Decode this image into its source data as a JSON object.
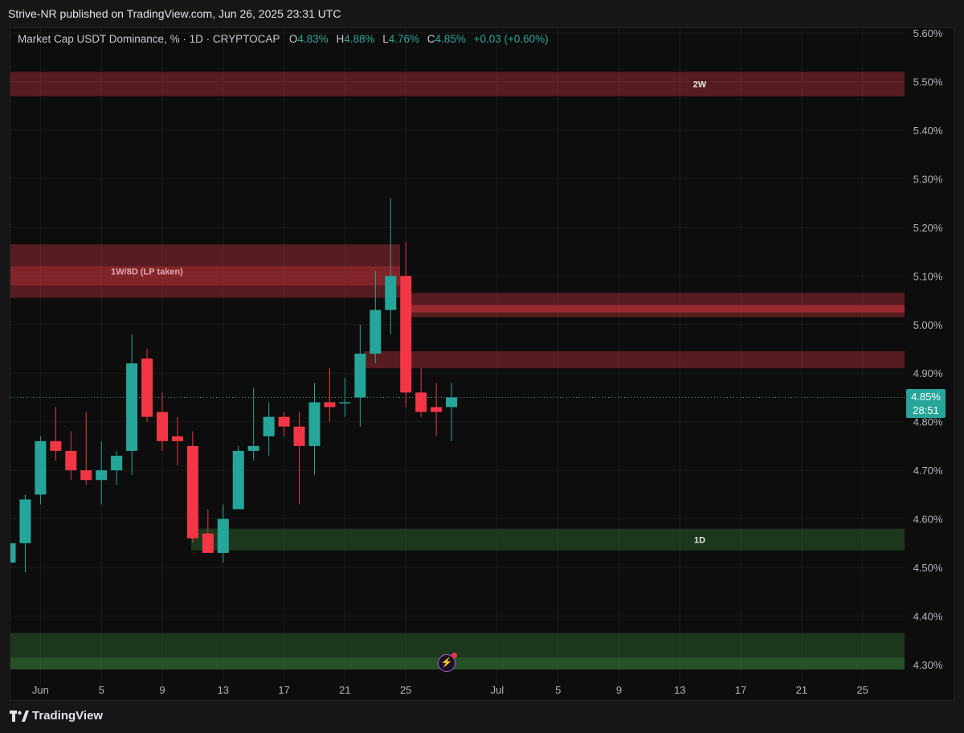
{
  "header": {
    "published": "Strive-NR published on TradingView.com, Jun 26, 2025 23:31 UTC"
  },
  "legend": {
    "symbol": "Market Cap USDT Dominance, % · 1D · CRYPTOCAP",
    "o_label": "O",
    "o_value": "4.83%",
    "h_label": "H",
    "h_value": "4.88%",
    "l_label": "L",
    "l_value": "4.76%",
    "c_label": "C",
    "c_value": "4.85%",
    "change": "+0.03 (+0.60%)"
  },
  "last_price": {
    "price": "4.85%",
    "countdown": "28:51"
  },
  "footer": {
    "brand": "TradingView"
  },
  "colors": {
    "up": "#26a69a",
    "down": "#f23645",
    "background": "#0d0d0d",
    "zone_red": "#d0343f",
    "zone_green": "#2f6b2f"
  },
  "icons": {
    "logo": "tradingview-logo-icon",
    "alert": "lightning-bolt-icon"
  },
  "chart_data": {
    "type": "candlestick",
    "title": "Market Cap USDT Dominance, % · 1D · CRYPTOCAP",
    "y_unit": "%",
    "ylim": [
      4.29,
      5.61
    ],
    "y_ticks": [
      "5.60%",
      "5.50%",
      "5.40%",
      "5.30%",
      "5.20%",
      "5.10%",
      "5.00%",
      "4.90%",
      "4.80%",
      "4.70%",
      "4.60%",
      "4.50%",
      "4.40%",
      "4.30%"
    ],
    "x_ticks": [
      "Jun",
      "5",
      "9",
      "13",
      "17",
      "21",
      "25",
      "Jul",
      "5",
      "9",
      "13",
      "17",
      "21",
      "25"
    ],
    "grid": true,
    "candles": [
      {
        "date": "2025-05-30",
        "open": 4.51,
        "high": 4.57,
        "low": 4.48,
        "close": 4.55
      },
      {
        "date": "2025-05-31",
        "open": 4.55,
        "high": 4.65,
        "low": 4.49,
        "close": 4.64
      },
      {
        "date": "2025-06-01",
        "open": 4.65,
        "high": 4.77,
        "low": 4.63,
        "close": 4.76
      },
      {
        "date": "2025-06-02",
        "open": 4.76,
        "high": 4.83,
        "low": 4.72,
        "close": 4.74
      },
      {
        "date": "2025-06-03",
        "open": 4.74,
        "high": 4.78,
        "low": 4.68,
        "close": 4.7
      },
      {
        "date": "2025-06-04",
        "open": 4.7,
        "high": 4.82,
        "low": 4.67,
        "close": 4.68
      },
      {
        "date": "2025-06-05",
        "open": 4.68,
        "high": 4.76,
        "low": 4.63,
        "close": 4.7
      },
      {
        "date": "2025-06-06",
        "open": 4.7,
        "high": 4.74,
        "low": 4.67,
        "close": 4.73
      },
      {
        "date": "2025-06-07",
        "open": 4.74,
        "high": 4.98,
        "low": 4.69,
        "close": 4.92
      },
      {
        "date": "2025-06-08",
        "open": 4.93,
        "high": 4.95,
        "low": 4.8,
        "close": 4.81
      },
      {
        "date": "2025-06-09",
        "open": 4.82,
        "high": 4.86,
        "low": 4.74,
        "close": 4.76
      },
      {
        "date": "2025-06-10",
        "open": 4.77,
        "high": 4.81,
        "low": 4.71,
        "close": 4.76
      },
      {
        "date": "2025-06-11",
        "open": 4.75,
        "high": 4.78,
        "low": 4.55,
        "close": 4.56
      },
      {
        "date": "2025-06-12",
        "open": 4.57,
        "high": 4.62,
        "low": 4.53,
        "close": 4.53
      },
      {
        "date": "2025-06-13",
        "open": 4.53,
        "high": 4.63,
        "low": 4.51,
        "close": 4.6
      },
      {
        "date": "2025-06-14",
        "open": 4.62,
        "high": 4.75,
        "low": 4.62,
        "close": 4.74
      },
      {
        "date": "2025-06-15",
        "open": 4.74,
        "high": 4.87,
        "low": 4.72,
        "close": 4.75
      },
      {
        "date": "2025-06-16",
        "open": 4.77,
        "high": 4.84,
        "low": 4.73,
        "close": 4.81
      },
      {
        "date": "2025-06-17",
        "open": 4.81,
        "high": 4.82,
        "low": 4.77,
        "close": 4.79
      },
      {
        "date": "2025-06-18",
        "open": 4.79,
        "high": 4.82,
        "low": 4.63,
        "close": 4.75
      },
      {
        "date": "2025-06-19",
        "open": 4.75,
        "high": 4.88,
        "low": 4.69,
        "close": 4.84
      },
      {
        "date": "2025-06-20",
        "open": 4.84,
        "high": 4.91,
        "low": 4.8,
        "close": 4.83
      },
      {
        "date": "2025-06-21",
        "open": 4.84,
        "high": 4.89,
        "low": 4.81,
        "close": 4.84
      },
      {
        "date": "2025-06-22",
        "open": 4.85,
        "high": 5.0,
        "low": 4.79,
        "close": 4.94
      },
      {
        "date": "2025-06-23",
        "open": 4.94,
        "high": 5.11,
        "low": 4.92,
        "close": 5.03
      },
      {
        "date": "2025-06-24",
        "open": 5.03,
        "high": 5.26,
        "low": 4.98,
        "close": 5.1
      },
      {
        "date": "2025-06-25",
        "open": 5.1,
        "high": 5.17,
        "low": 4.83,
        "close": 4.86
      },
      {
        "date": "2025-06-26",
        "open": 4.86,
        "high": 4.91,
        "low": 4.81,
        "close": 4.82
      },
      {
        "date": "2025-06-27",
        "open": 4.83,
        "high": 4.88,
        "low": 4.77,
        "close": 4.82
      },
      {
        "date": "2025-06-28",
        "open": 4.83,
        "high": 4.88,
        "low": 4.76,
        "close": 4.85
      }
    ],
    "zones": [
      {
        "label": "2W",
        "kind": "resistance",
        "low": 5.47,
        "high": 5.52
      },
      {
        "label": "1W/8D (LP taken)",
        "kind": "resistance",
        "low": 5.055,
        "high": 5.165
      },
      {
        "label": "",
        "kind": "resistance",
        "low": 5.015,
        "high": 5.065
      },
      {
        "label": "",
        "kind": "resistance",
        "low": 4.91,
        "high": 4.945
      },
      {
        "label": "1D",
        "kind": "support",
        "low": 4.535,
        "high": 4.58
      },
      {
        "label": "",
        "kind": "support",
        "low": 4.29,
        "high": 4.365
      }
    ],
    "last_price": 4.85
  }
}
